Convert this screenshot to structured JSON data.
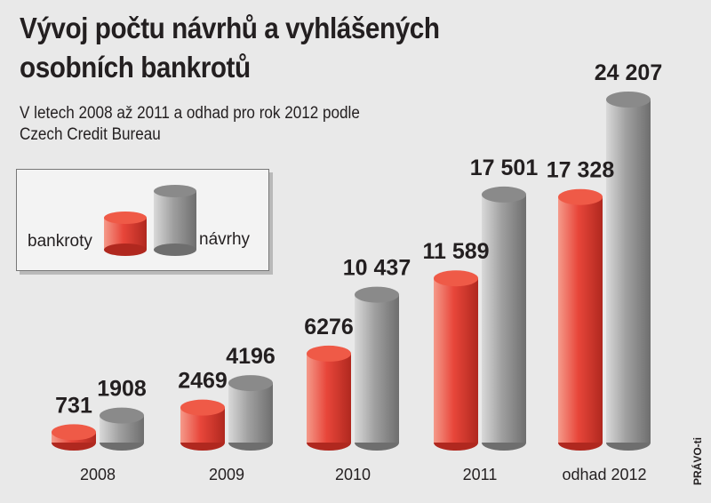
{
  "title": "Vývoj počtu návrhů a vyhlášených osobních bankrotů",
  "subtitle": "V letech 2008 až 2011 a odhad pro rok 2012 podle Czech Credit Bureau",
  "credit": "PRÁVO-ti",
  "legend": {
    "position": "top-left",
    "bankroty": "bankroty",
    "navrhy": "návrhy"
  },
  "colors": {
    "bankroty": "#e8463a",
    "navrhy": "#9e9e9e",
    "background": "#e9e9e9"
  },
  "chart_data": {
    "type": "bar",
    "style": "3d-cylinder",
    "grid": false,
    "categories": [
      "2008",
      "2009",
      "2010",
      "2011",
      "odhad 2012"
    ],
    "series": [
      {
        "name": "bankroty",
        "values": [
          731,
          2469,
          6276,
          11589,
          17328
        ],
        "labels": [
          "731",
          "2469",
          "6276",
          "11 589",
          "17 328"
        ]
      },
      {
        "name": "návrhy",
        "values": [
          1908,
          4196,
          10437,
          17501,
          24207
        ],
        "labels": [
          "1908",
          "4196",
          "10 437",
          "17 501",
          "24 207"
        ]
      }
    ],
    "ylim": [
      0,
      25000
    ]
  }
}
